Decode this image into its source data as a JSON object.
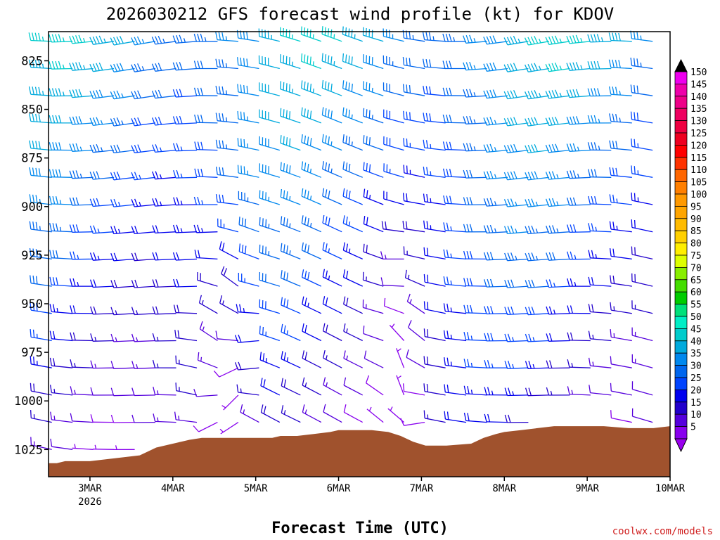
{
  "chart_data": {
    "type": "wind_barb_profile",
    "title": "2026030212 GFS forecast wind profile (kt) for KDOV",
    "xlabel": "Forecast Time (UTC)",
    "credit": "coolwx.com/models",
    "x_ticks": [
      {
        "day": 3,
        "label": "3MAR",
        "sub": "2026"
      },
      {
        "day": 4,
        "label": "4MAR"
      },
      {
        "day": 5,
        "label": "5MAR"
      },
      {
        "day": 6,
        "label": "6MAR"
      },
      {
        "day": 7,
        "label": "7MAR"
      },
      {
        "day": 8,
        "label": "8MAR"
      },
      {
        "day": 9,
        "label": "9MAR"
      },
      {
        "day": 10,
        "label": "10MAR"
      }
    ],
    "xlim_days": [
      2.5,
      10.0
    ],
    "y_ticks": [
      825,
      850,
      875,
      900,
      925,
      950,
      975,
      1000,
      1025
    ],
    "ylim_hpa": [
      810,
      1039
    ],
    "barb_levels_hpa": [
      815,
      829,
      843,
      857,
      871,
      885,
      899,
      913,
      927,
      941,
      955,
      969,
      983,
      997,
      1011,
      1025
    ],
    "time_step_hours": 6,
    "colorbar": {
      "labels": [
        150,
        145,
        140,
        135,
        130,
        125,
        120,
        115,
        110,
        105,
        100,
        95,
        90,
        85,
        80,
        75,
        70,
        65,
        60,
        55,
        50,
        45,
        40,
        35,
        30,
        25,
        20,
        15,
        10,
        5
      ],
      "colors": [
        "#ee00ee",
        "#ee00aa",
        "#ee0088",
        "#ee0060",
        "#ee0040",
        "#ee0020",
        "#ff0000",
        "#ff3300",
        "#ff6600",
        "#ff7f00",
        "#ff9900",
        "#ffa500",
        "#ffbb00",
        "#ffd000",
        "#ffee00",
        "#ddff00",
        "#88ee00",
        "#44dd00",
        "#00cc00",
        "#00e07a",
        "#00eec6",
        "#00cccc",
        "#00aadd",
        "#0088ee",
        "#0066ee",
        "#0044ff",
        "#0000ee",
        "#2200cc",
        "#5500dd",
        "#8800ee"
      ]
    },
    "terrain": {
      "color": "#a0522d",
      "surface_points": [
        [
          2.5,
          1032
        ],
        [
          2.6,
          1032
        ],
        [
          2.7,
          1031
        ],
        [
          3.0,
          1031
        ],
        [
          3.2,
          1030
        ],
        [
          3.4,
          1029
        ],
        [
          3.6,
          1028
        ],
        [
          3.7,
          1026
        ],
        [
          3.8,
          1024
        ],
        [
          3.9,
          1023
        ],
        [
          4.0,
          1022
        ],
        [
          4.1,
          1021
        ],
        [
          4.2,
          1020
        ],
        [
          4.35,
          1019
        ],
        [
          4.6,
          1019
        ],
        [
          4.8,
          1019
        ],
        [
          5.0,
          1019
        ],
        [
          5.2,
          1019
        ],
        [
          5.3,
          1018
        ],
        [
          5.5,
          1018
        ],
        [
          5.7,
          1017
        ],
        [
          5.9,
          1016
        ],
        [
          6.0,
          1015
        ],
        [
          6.2,
          1015
        ],
        [
          6.4,
          1015
        ],
        [
          6.6,
          1016
        ],
        [
          6.75,
          1018
        ],
        [
          6.9,
          1021
        ],
        [
          7.05,
          1023
        ],
        [
          7.3,
          1023
        ],
        [
          7.6,
          1022
        ],
        [
          7.75,
          1019
        ],
        [
          7.9,
          1017
        ],
        [
          8.0,
          1016
        ],
        [
          8.2,
          1015
        ],
        [
          8.4,
          1014
        ],
        [
          8.6,
          1013
        ],
        [
          8.8,
          1013
        ],
        [
          9.0,
          1013
        ],
        [
          9.2,
          1013
        ],
        [
          9.5,
          1014
        ],
        [
          9.8,
          1014
        ],
        [
          10.0,
          1013
        ]
      ]
    },
    "wind_regime_notes": "Wind barbs every 6 hours from 2 Mar 12Z to 10 Mar. Speeds mostly 10-45 kt; westerly/northwesterly flow aloft, weak variable winds near the surface on 4-5 Mar and 6-7 Mar."
  }
}
